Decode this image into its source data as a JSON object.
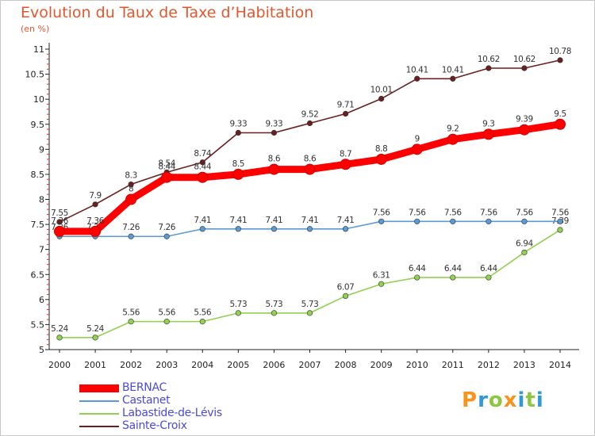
{
  "header": {
    "title": "Evolution du Taux de Taxe d’Habitation",
    "unit": "(en %)"
  },
  "logo": {
    "text": "Proxiti",
    "colors": [
      "#f7941d",
      "#2e9ad8",
      "#8dc63f",
      "#f7941d",
      "#2e9ad8",
      "#8dc63f",
      "#2e9ad8"
    ]
  },
  "chart_data": {
    "type": "line",
    "x": [
      2000,
      2001,
      2002,
      2003,
      2004,
      2005,
      2006,
      2007,
      2008,
      2009,
      2010,
      2011,
      2012,
      2013,
      2014
    ],
    "xticks": [
      "2000",
      "2001",
      "2002",
      "2003",
      "2004",
      "2005",
      "2006",
      "2007",
      "2008",
      "2009",
      "2010",
      "2011",
      "2012",
      "2013",
      "2014"
    ],
    "ylim": [
      5,
      11
    ],
    "yticks": [
      "5",
      "5.5",
      "6",
      "6.5",
      "7",
      "7.5",
      "8",
      "8.5",
      "9",
      "9.5",
      "10",
      "10.5",
      "11"
    ],
    "grid": false,
    "legend_position": "bottom-left",
    "series": [
      {
        "name": "BERNAC",
        "color": "#ff0000",
        "values": [
          7.36,
          7.36,
          8,
          8.44,
          8.44,
          8.5,
          8.6,
          8.6,
          8.7,
          8.8,
          9,
          9.2,
          9.3,
          9.39,
          9.5
        ],
        "labels": [
          "7.36",
          "7.36",
          "8",
          "8.44",
          "8.44",
          "8.5",
          "8.6",
          "8.6",
          "8.7",
          "8.8",
          "9",
          "9.2",
          "9.3",
          "9.39",
          "9.5"
        ]
      },
      {
        "name": "Castanet",
        "color": "#5b9bd5",
        "values": [
          7.26,
          7.26,
          7.26,
          7.26,
          7.41,
          7.41,
          7.41,
          7.41,
          7.41,
          7.56,
          7.56,
          7.56,
          7.56,
          7.56,
          7.56
        ],
        "labels": [
          "7.26",
          "7.26",
          "7.26",
          "7.26",
          "7.41",
          "7.41",
          "7.41",
          "7.41",
          "7.41",
          "7.56",
          "7.56",
          "7.56",
          "7.56",
          "7.56",
          "7.56"
        ]
      },
      {
        "name": "Labastide-de-Lévis",
        "color": "#92d050",
        "values": [
          5.24,
          5.24,
          5.56,
          5.56,
          5.56,
          5.73,
          5.73,
          5.73,
          6.07,
          6.31,
          6.44,
          6.44,
          6.44,
          6.94,
          7.39
        ],
        "labels": [
          "5.24",
          "5.24",
          "5.56",
          "5.56",
          "5.56",
          "5.73",
          "5.73",
          "5.73",
          "6.07",
          "6.31",
          "6.44",
          "6.44",
          "6.44",
          "6.94",
          "7.39"
        ]
      },
      {
        "name": "Sainte-Croix",
        "color": "#6b1f1f",
        "values": [
          7.55,
          7.9,
          8.3,
          8.54,
          8.74,
          9.33,
          9.33,
          9.52,
          9.71,
          10.01,
          10.41,
          10.41,
          10.62,
          10.62,
          10.78
        ],
        "labels": [
          "7.55",
          "7.9",
          "8.3",
          "8.54",
          "8.74",
          "9.33",
          "9.33",
          "9.52",
          "9.71",
          "10.01",
          "10.41",
          "10.41",
          "10.62",
          "10.62",
          "10.78"
        ]
      }
    ]
  }
}
